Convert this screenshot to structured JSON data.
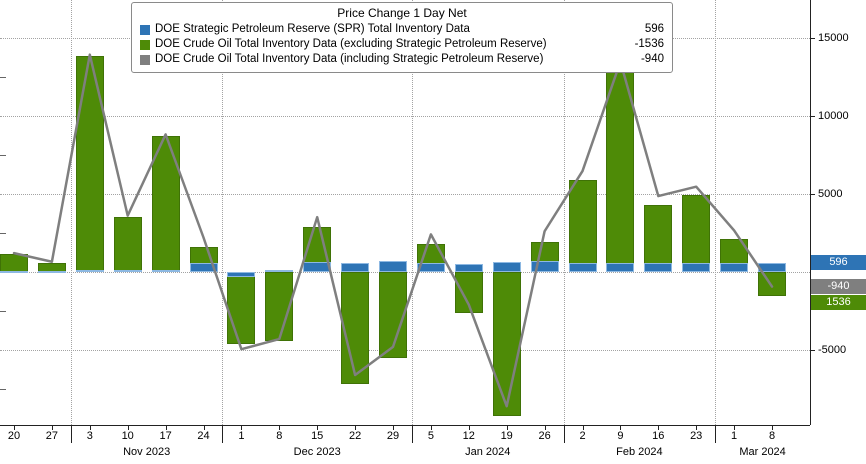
{
  "legend": {
    "title": "Price Change 1 Day Net",
    "items": [
      {
        "label": "DOE Strategic Petroleum Reserve (SPR) Total Inventory Data",
        "value": "596",
        "color": "#2e74b5"
      },
      {
        "label": "DOE Crude Oil Total Inventory Data (excluding Strategic Petroleum Reserve)",
        "value": "-1536",
        "color": "#4e8b07"
      },
      {
        "label": "DOE Crude Oil Total Inventory Data (including Strategic Petroleum Reserve)",
        "value": "-940",
        "color": "#7f7f7f"
      }
    ]
  },
  "chart_data": {
    "type": "bar",
    "title": "Price Change 1 Day Net",
    "categories": [
      "20",
      "27",
      "3",
      "10",
      "17",
      "24",
      "1",
      "8",
      "15",
      "22",
      "29",
      "5",
      "12",
      "19",
      "26",
      "2",
      "9",
      "16",
      "23",
      "1",
      "8"
    ],
    "month_groups": [
      {
        "label": "Nov 2023",
        "first_index": 2
      },
      {
        "label": "Dec 2023",
        "first_index": 6
      },
      {
        "label": "Jan 2024",
        "first_index": 11
      },
      {
        "label": "Feb 2024",
        "first_index": 15
      },
      {
        "label": "Mar 2024",
        "first_index": 19
      }
    ],
    "series": [
      {
        "name": "DOE Strategic Petroleum Reserve (SPR) Total Inventory Data",
        "key": "spr",
        "type": "bar",
        "color": "#2e74b5",
        "values": [
          50,
          50,
          100,
          100,
          100,
          600,
          -350,
          150,
          650,
          600,
          700,
          600,
          500,
          650,
          700,
          550,
          550,
          550,
          550,
          550,
          596
        ]
      },
      {
        "name": "DOE Crude Oil Total Inventory Data (excluding Strategic Petroleum Reserve)",
        "key": "crude_ex_spr",
        "type": "bar",
        "color": "#4e8b07",
        "values": [
          1150,
          600,
          13800,
          3500,
          8700,
          1600,
          -4600,
          -4450,
          2850,
          -7200,
          -5500,
          1800,
          -2600,
          -9250,
          1900,
          5900,
          12900,
          4300,
          4900,
          2100,
          -1536
        ]
      },
      {
        "name": "DOE Crude Oil Total Inventory Data (including Strategic Petroleum Reserve)",
        "key": "total_inc_spr",
        "type": "line",
        "color": "#7f7f7f",
        "values": [
          1200,
          650,
          13900,
          3600,
          8800,
          2200,
          -4950,
          -4300,
          3500,
          -6600,
          -4800,
          2400,
          -2100,
          -8600,
          2600,
          6450,
          13450,
          4850,
          5450,
          2650,
          -940
        ]
      }
    ],
    "y_axis": {
      "side": "right",
      "ylim": [
        -9800,
        17400
      ],
      "ticks": [
        {
          "value": 15000,
          "label": "15000"
        },
        {
          "value": 10000,
          "label": "10000"
        },
        {
          "value": 5000,
          "label": "5000"
        },
        {
          "value": -5000,
          "label": "-5000"
        }
      ],
      "gridlines": [
        15000,
        10000,
        5000,
        0,
        -5000
      ],
      "minor_ticks": [
        12500,
        7500,
        2500,
        -2500,
        -7500
      ]
    },
    "last_value_badges": [
      {
        "label": "596",
        "value": 596,
        "color": "#2e74b5"
      },
      {
        "label": "-940",
        "value": -940,
        "color": "#7f7f7f"
      },
      {
        "label": "1536",
        "value": -1536,
        "color": "#4e8b07"
      }
    ]
  }
}
